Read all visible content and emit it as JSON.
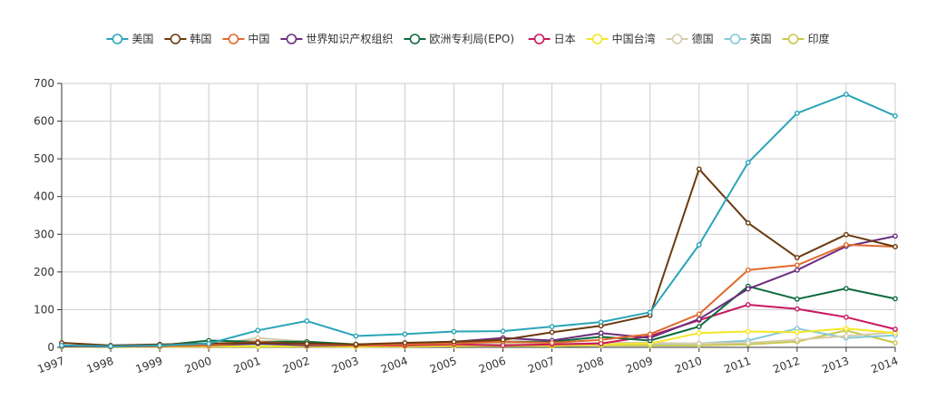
{
  "chart_data": {
    "type": "line",
    "x": [
      "1997",
      "1998",
      "1999",
      "2000",
      "2001",
      "2002",
      "2003",
      "2004",
      "2005",
      "2006",
      "2007",
      "2008",
      "2009",
      "2010",
      "2011",
      "2012",
      "2013",
      "2014"
    ],
    "ylim": [
      0,
      700
    ],
    "yticks": [
      0,
      100,
      200,
      300,
      400,
      500,
      600,
      700
    ],
    "grid": true,
    "legend_position": "top-center",
    "series": [
      {
        "name": "美国",
        "color": "#2aa5b8",
        "values": [
          5,
          3,
          5,
          10,
          45,
          70,
          30,
          35,
          42,
          43,
          55,
          67,
          93,
          272,
          490,
          621,
          671,
          614
        ]
      },
      {
        "name": "韩国",
        "color": "#6b3a0e",
        "values": [
          12,
          5,
          8,
          10,
          12,
          10,
          8,
          12,
          15,
          20,
          40,
          57,
          85,
          473,
          330,
          238,
          299,
          267
        ]
      },
      {
        "name": "中国",
        "color": "#e06a2c",
        "values": [
          5,
          3,
          3,
          5,
          15,
          8,
          5,
          8,
          10,
          15,
          12,
          20,
          35,
          88,
          205,
          218,
          272,
          267
        ]
      },
      {
        "name": "世界知识产权组织",
        "color": "#6b2d7e",
        "values": [
          3,
          2,
          3,
          5,
          10,
          5,
          5,
          10,
          15,
          25,
          18,
          38,
          25,
          75,
          155,
          205,
          268,
          295
        ]
      },
      {
        "name": "欧洲专利局(EPO)",
        "color": "#0d6b3f",
        "values": [
          3,
          3,
          5,
          18,
          15,
          15,
          8,
          10,
          15,
          15,
          15,
          28,
          18,
          55,
          162,
          128,
          156,
          129
        ]
      },
      {
        "name": "日本",
        "color": "#c8185e",
        "values": [
          5,
          3,
          3,
          8,
          15,
          5,
          5,
          5,
          8,
          5,
          8,
          10,
          30,
          72,
          113,
          102,
          80,
          48
        ]
      },
      {
        "name": "中国台湾",
        "color": "#f5e626",
        "values": [
          2,
          1,
          2,
          3,
          3,
          3,
          2,
          3,
          5,
          5,
          5,
          8,
          10,
          38,
          42,
          40,
          50,
          38
        ]
      },
      {
        "name": "德国",
        "color": "#d6ccaa",
        "values": [
          2,
          2,
          2,
          5,
          25,
          15,
          5,
          10,
          12,
          10,
          8,
          12,
          12,
          10,
          12,
          20,
          30,
          40
        ]
      },
      {
        "name": "英国",
        "color": "#86c8d9",
        "values": [
          2,
          1,
          2,
          3,
          5,
          3,
          3,
          5,
          5,
          5,
          5,
          8,
          10,
          10,
          18,
          50,
          25,
          32
        ]
      },
      {
        "name": "印度",
        "color": "#c8c84a",
        "values": [
          1,
          1,
          1,
          2,
          2,
          2,
          2,
          2,
          3,
          3,
          3,
          5,
          5,
          5,
          8,
          15,
          45,
          12
        ]
      }
    ]
  }
}
